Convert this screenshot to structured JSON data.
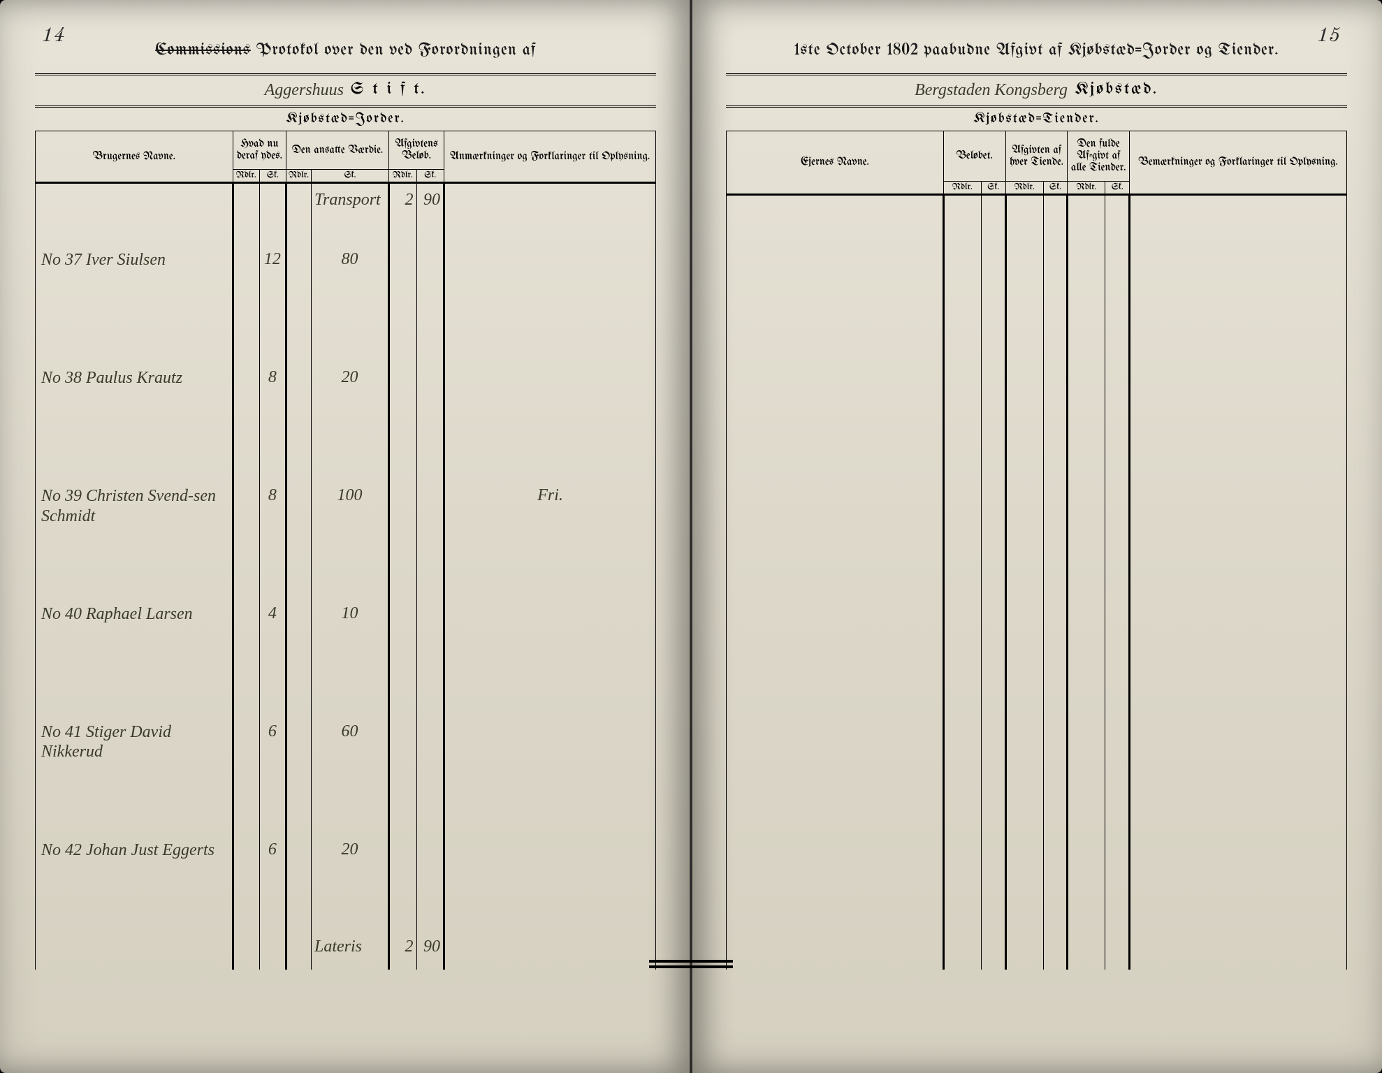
{
  "left": {
    "pageNumber": "14",
    "headerPrefix": "Commissions",
    "headerTitle": "Protokol over den ved Forordningen af",
    "stiftHandwritten": "Aggershuus",
    "stiftPrinted": "S t i f t.",
    "subHeader": "Kjøbstæd=Jorder.",
    "columns": {
      "c1": "Brugernes Navne.",
      "c2": "Hvad nu deraf ydes.",
      "c3": "Den ansatte Værdie.",
      "c4": "Afgivtens Beløb.",
      "c5": "Anmærkninger og Forklaringer til Oplysning."
    },
    "subcols": {
      "rdlr": "Rdlr.",
      "sk": "Sk."
    },
    "transport": {
      "label": "Transport",
      "afg_rdlr": "2",
      "afg_sk": "90"
    },
    "rows": [
      {
        "no": "No 37",
        "name": "Iver Siulsen",
        "ydes_rdlr": "",
        "ydes_sk": "12",
        "vaer_rdlr": "",
        "vaer_sk": "80",
        "afg_rdlr": "",
        "afg_sk": "",
        "remarks": ""
      },
      {
        "no": "No 38",
        "name": "Paulus Krautz",
        "ydes_rdlr": "",
        "ydes_sk": "8",
        "vaer_rdlr": "",
        "vaer_sk": "20",
        "afg_rdlr": "",
        "afg_sk": "",
        "remarks": ""
      },
      {
        "no": "No 39",
        "name": "Christen Svend-sen Schmidt",
        "ydes_rdlr": "",
        "ydes_sk": "8",
        "vaer_rdlr": "",
        "vaer_sk": "100",
        "afg_rdlr": "",
        "afg_sk": "",
        "remarks": "Fri."
      },
      {
        "no": "No 40",
        "name": "Raphael Larsen",
        "ydes_rdlr": "",
        "ydes_sk": "4",
        "vaer_rdlr": "",
        "vaer_sk": "10",
        "afg_rdlr": "",
        "afg_sk": "",
        "remarks": ""
      },
      {
        "no": "No 41",
        "name": "Stiger David Nikkerud",
        "ydes_rdlr": "",
        "ydes_sk": "6",
        "vaer_rdlr": "",
        "vaer_sk": "60",
        "afg_rdlr": "",
        "afg_sk": "",
        "remarks": ""
      },
      {
        "no": "No 42",
        "name": "Johan Just Eggerts",
        "ydes_rdlr": "",
        "ydes_sk": "6",
        "vaer_rdlr": "",
        "vaer_sk": "20",
        "afg_rdlr": "",
        "afg_sk": "",
        "remarks": ""
      }
    ],
    "lateris": {
      "label": "Lateris",
      "afg_rdlr": "2",
      "afg_sk": "90"
    }
  },
  "right": {
    "pageNumber": "15",
    "headerTitle": "1ste October 1802 paabudne Afgivt af Kjøbstæd=Jorder og Tiender.",
    "stiftHandwritten": "Bergstaden Kongsberg",
    "stiftPrinted": "Kjøbstæd.",
    "subHeader": "Kjøbstæd=Tiender.",
    "columns": {
      "c1": "Ejernes Navne.",
      "c2": "Beløbet.",
      "c3": "Afgivten af hver Tiende.",
      "c4": "Den fulde Af-givt af alle Tiender.",
      "c5": "Bemærkninger og Forklaringer til Oplysning."
    },
    "subcols": {
      "rdlr": "Rdlr.",
      "sk": "Sk."
    }
  },
  "colors": {
    "paper": "#e8e4d8",
    "ink": "#1a1a1a",
    "handwriting": "#3a3a2a"
  }
}
